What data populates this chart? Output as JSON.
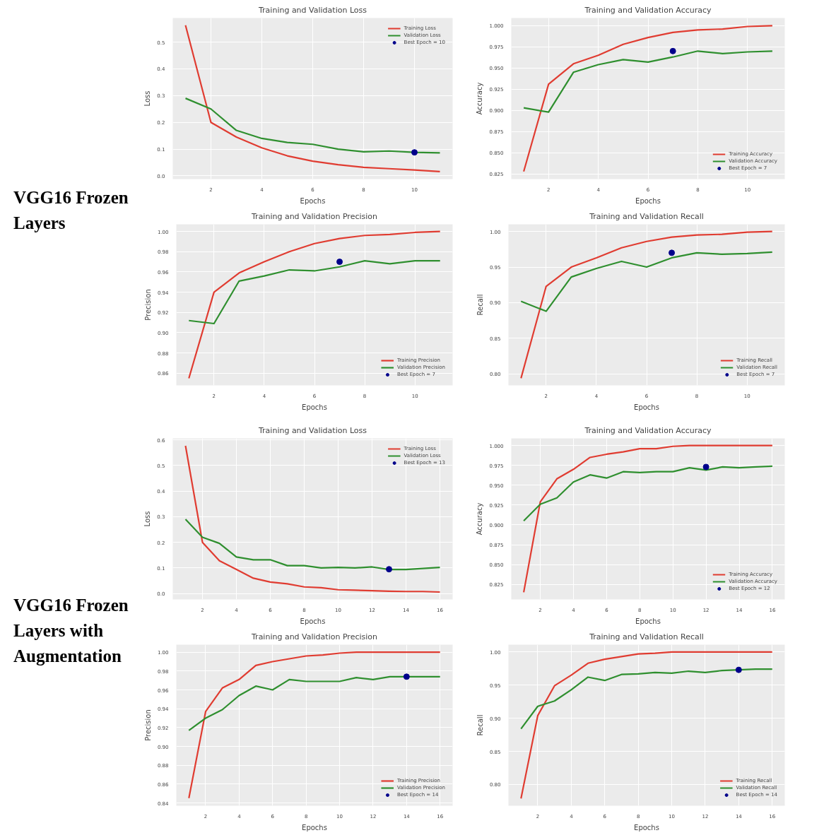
{
  "chart_data": [
    {
      "type": "other",
      "title": "VGG16 Frozen Layers"
    },
    {
      "type": "line",
      "title": "Training and Validation Loss",
      "xlabel": "Epochs",
      "ylabel": "Loss",
      "x": [
        1,
        2,
        3,
        4,
        5,
        6,
        7,
        8,
        9,
        10,
        11
      ],
      "xlim": [
        0.5,
        11.5
      ],
      "xticks": [
        2,
        4,
        6,
        8,
        10
      ],
      "ylim": [
        -0.012,
        0.59
      ],
      "yticks": [
        {
          "value": 0,
          "label": "0.0"
        },
        0.1,
        0.2,
        0.3,
        0.4,
        0.5
      ],
      "grid": true,
      "legend": "top right",
      "series": [
        {
          "name": "Training Loss",
          "color": "#e03c31",
          "values": [
            0.563,
            0.2,
            0.145,
            0.105,
            0.075,
            0.055,
            0.042,
            0.032,
            0.027,
            0.022,
            0.016
          ]
        },
        {
          "name": "Validation Loss",
          "color": "#2f8f2f",
          "values": [
            0.29,
            0.25,
            0.17,
            0.14,
            0.125,
            0.118,
            0.1,
            0.09,
            0.093,
            0.088,
            0.086
          ]
        },
        {
          "name": "Best Epoch = 10",
          "type": "scatter",
          "marker": "circle",
          "color": "#00008b",
          "x": [
            10
          ],
          "values": [
            0.088
          ]
        }
      ]
    },
    {
      "type": "line",
      "title": "Training and Validation Accuracy",
      "xlabel": "Epochs",
      "ylabel": "Accuracy",
      "x": [
        1,
        2,
        3,
        4,
        5,
        6,
        7,
        8,
        9,
        10,
        11
      ],
      "xlim": [
        0.5,
        11.5
      ],
      "xticks": [
        2,
        4,
        6,
        8,
        10
      ],
      "ylim": [
        0.819,
        1.009
      ],
      "yticks": [
        0.825,
        {
          "value": 0.85,
          "label": "0.850"
        },
        0.875,
        {
          "value": 0.9,
          "label": "0.900"
        },
        0.925,
        {
          "value": 0.95,
          "label": "0.950"
        },
        0.975,
        {
          "value": 1.0,
          "label": "1.000"
        }
      ],
      "grid": true,
      "legend": "bottom right",
      "series": [
        {
          "name": "Training Accuracy",
          "color": "#e03c31",
          "values": [
            0.828,
            0.931,
            0.955,
            0.965,
            0.978,
            0.986,
            0.992,
            0.995,
            0.996,
            0.999,
            1.0
          ]
        },
        {
          "name": "Validation Accuracy",
          "color": "#2f8f2f",
          "values": [
            0.903,
            0.898,
            0.945,
            0.954,
            0.96,
            0.957,
            0.963,
            0.97,
            0.967,
            0.969,
            0.97
          ]
        },
        {
          "name": "Best Epoch = 7",
          "type": "scatter",
          "marker": "circle",
          "color": "#00008b",
          "x": [
            7
          ],
          "values": [
            0.97
          ]
        }
      ]
    },
    {
      "type": "line",
      "title": "Training and Validation Precision",
      "xlabel": "Epochs",
      "ylabel": "Precision",
      "x": [
        1,
        2,
        3,
        4,
        5,
        6,
        7,
        8,
        9,
        10,
        11
      ],
      "xlim": [
        0.5,
        11.5
      ],
      "xticks": [
        2,
        4,
        6,
        8,
        10
      ],
      "ylim": [
        0.848,
        1.007
      ],
      "yticks": [
        0.86,
        0.88,
        {
          "value": 0.9,
          "label": "0.90"
        },
        0.92,
        0.94,
        0.96,
        0.98,
        {
          "value": 1.0,
          "label": "1.00"
        }
      ],
      "grid": true,
      "legend": "bottom right",
      "series": [
        {
          "name": "Training Precision",
          "color": "#e03c31",
          "values": [
            0.855,
            0.94,
            0.959,
            0.97,
            0.98,
            0.988,
            0.993,
            0.996,
            0.997,
            0.999,
            1.0
          ]
        },
        {
          "name": "Validation Precision",
          "color": "#2f8f2f",
          "values": [
            0.912,
            0.909,
            0.951,
            0.956,
            0.962,
            0.961,
            0.965,
            0.971,
            0.968,
            0.971,
            0.971
          ]
        },
        {
          "name": "Best Epoch = 7",
          "type": "scatter",
          "marker": "circle",
          "color": "#00008b",
          "x": [
            7
          ],
          "values": [
            0.97
          ]
        }
      ]
    },
    {
      "type": "line",
      "title": "Training and Validation Recall",
      "xlabel": "Epochs",
      "ylabel": "Recall",
      "x": [
        1,
        2,
        3,
        4,
        5,
        6,
        7,
        8,
        9,
        10,
        11
      ],
      "xlim": [
        0.5,
        11.5
      ],
      "xticks": [
        2,
        4,
        6,
        8,
        10
      ],
      "ylim": [
        0.784,
        1.01
      ],
      "yticks": [
        {
          "value": 0.8,
          "label": "0.80"
        },
        0.85,
        {
          "value": 0.9,
          "label": "0.90"
        },
        0.95,
        {
          "value": 1.0,
          "label": "1.00"
        }
      ],
      "grid": true,
      "legend": "bottom right",
      "series": [
        {
          "name": "Training Recall",
          "color": "#e03c31",
          "values": [
            0.794,
            0.923,
            0.95,
            0.963,
            0.977,
            0.986,
            0.992,
            0.995,
            0.996,
            0.999,
            1.0
          ]
        },
        {
          "name": "Validation Recall",
          "color": "#2f8f2f",
          "values": [
            0.902,
            0.888,
            0.936,
            0.948,
            0.958,
            0.95,
            0.963,
            0.97,
            0.968,
            0.969,
            0.971
          ]
        },
        {
          "name": "Best Epoch = 7",
          "type": "scatter",
          "marker": "circle",
          "color": "#00008b",
          "x": [
            7
          ],
          "values": [
            0.97
          ]
        }
      ]
    },
    {
      "type": "other",
      "title": "VGG16 Frozen Layers with Augmentation"
    },
    {
      "type": "line",
      "title": "Training and Validation Loss",
      "xlabel": "Epochs",
      "ylabel": "Loss",
      "x": [
        1,
        2,
        3,
        4,
        5,
        6,
        7,
        8,
        9,
        10,
        11,
        12,
        13,
        14,
        15,
        16
      ],
      "xlim": [
        0.25,
        16.75
      ],
      "xticks": [
        2,
        4,
        6,
        8,
        10,
        12,
        14,
        16
      ],
      "ylim": [
        -0.023,
        0.606
      ],
      "yticks": [
        {
          "value": 0,
          "label": "0.0"
        },
        0.1,
        0.2,
        0.3,
        0.4,
        0.5,
        0.6
      ],
      "grid": true,
      "legend": "top right",
      "series": [
        {
          "name": "Training Loss",
          "color": "#e03c31",
          "values": [
            0.577,
            0.2,
            0.128,
            0.094,
            0.06,
            0.045,
            0.038,
            0.026,
            0.023,
            0.015,
            0.013,
            0.011,
            0.009,
            0.008,
            0.008,
            0.006
          ]
        },
        {
          "name": "Validation Loss",
          "color": "#2f8f2f",
          "values": [
            0.29,
            0.22,
            0.196,
            0.143,
            0.132,
            0.132,
            0.109,
            0.109,
            0.1,
            0.102,
            0.1,
            0.104,
            0.094,
            0.094,
            0.098,
            0.102
          ]
        },
        {
          "name": "Best Epoch = 13",
          "type": "scatter",
          "marker": "circle",
          "color": "#00008b",
          "x": [
            13
          ],
          "values": [
            0.095
          ]
        }
      ]
    },
    {
      "type": "line",
      "title": "Training and Validation Accuracy",
      "xlabel": "Epochs",
      "ylabel": "Accuracy",
      "x": [
        1,
        2,
        3,
        4,
        5,
        6,
        7,
        8,
        9,
        10,
        11,
        12,
        13,
        14,
        15,
        16
      ],
      "xlim": [
        0.25,
        16.75
      ],
      "xticks": [
        2,
        4,
        6,
        8,
        10,
        12,
        14,
        16
      ],
      "ylim": [
        0.806,
        1.009
      ],
      "yticks": [
        0.825,
        {
          "value": 0.85,
          "label": "0.850"
        },
        0.875,
        {
          "value": 0.9,
          "label": "0.900"
        },
        0.925,
        {
          "value": 0.95,
          "label": "0.950"
        },
        0.975,
        {
          "value": 1.0,
          "label": "1.000"
        }
      ],
      "grid": true,
      "legend": "bottom right",
      "series": [
        {
          "name": "Training Accuracy",
          "color": "#e03c31",
          "values": [
            0.815,
            0.929,
            0.958,
            0.97,
            0.985,
            0.989,
            0.992,
            0.996,
            0.996,
            0.999,
            1.0,
            1.0,
            1.0,
            1.0,
            1.0,
            1.0
          ]
        },
        {
          "name": "Validation Accuracy",
          "color": "#2f8f2f",
          "values": [
            0.905,
            0.926,
            0.934,
            0.954,
            0.963,
            0.959,
            0.967,
            0.966,
            0.967,
            0.967,
            0.972,
            0.969,
            0.973,
            0.972,
            0.973,
            0.974
          ]
        },
        {
          "name": "Best Epoch = 12",
          "type": "scatter",
          "marker": "circle",
          "color": "#00008b",
          "x": [
            12
          ],
          "values": [
            0.973
          ]
        }
      ]
    },
    {
      "type": "line",
      "title": "Training and Validation Precision",
      "xlabel": "Epochs",
      "ylabel": "Precision",
      "x": [
        1,
        2,
        3,
        4,
        5,
        6,
        7,
        8,
        9,
        10,
        11,
        12,
        13,
        14,
        15,
        16
      ],
      "xlim": [
        0.25,
        16.75
      ],
      "xticks": [
        2,
        4,
        6,
        8,
        10,
        12,
        14,
        16
      ],
      "ylim": [
        0.837,
        1.008
      ],
      "yticks": [
        0.84,
        0.86,
        0.88,
        {
          "value": 0.9,
          "label": "0.90"
        },
        0.92,
        0.94,
        0.96,
        0.98,
        {
          "value": 1.0,
          "label": "1.00"
        }
      ],
      "grid": true,
      "legend": "bottom right",
      "series": [
        {
          "name": "Training Precision",
          "color": "#e03c31",
          "values": [
            0.845,
            0.937,
            0.962,
            0.971,
            0.986,
            0.99,
            0.993,
            0.996,
            0.997,
            0.999,
            1.0,
            1.0,
            1.0,
            1.0,
            1.0,
            1.0
          ]
        },
        {
          "name": "Validation Precision",
          "color": "#2f8f2f",
          "values": [
            0.917,
            0.93,
            0.939,
            0.954,
            0.964,
            0.96,
            0.971,
            0.969,
            0.969,
            0.969,
            0.973,
            0.971,
            0.974,
            0.974,
            0.974,
            0.974
          ]
        },
        {
          "name": "Best Epoch = 14",
          "type": "scatter",
          "marker": "circle",
          "color": "#00008b",
          "x": [
            14
          ],
          "values": [
            0.974
          ]
        }
      ]
    },
    {
      "type": "line",
      "title": "Training and Validation Recall",
      "xlabel": "Epochs",
      "ylabel": "Recall",
      "x": [
        1,
        2,
        3,
        4,
        5,
        6,
        7,
        8,
        9,
        10,
        11,
        12,
        13,
        14,
        15,
        16
      ],
      "xlim": [
        0.25,
        16.75
      ],
      "xticks": [
        2,
        4,
        6,
        8,
        10,
        12,
        14,
        16
      ],
      "ylim": [
        0.768,
        1.011
      ],
      "yticks": [
        {
          "value": 0.8,
          "label": "0.80"
        },
        0.85,
        {
          "value": 0.9,
          "label": "0.90"
        },
        0.95,
        {
          "value": 1.0,
          "label": "1.00"
        }
      ],
      "grid": true,
      "legend": "bottom right",
      "series": [
        {
          "name": "Training Recall",
          "color": "#e03c31",
          "values": [
            0.779,
            0.904,
            0.949,
            0.965,
            0.983,
            0.989,
            0.993,
            0.997,
            0.998,
            1.0,
            1.0,
            1.0,
            1.0,
            1.0,
            1.0,
            1.0
          ]
        },
        {
          "name": "Validation Recall",
          "color": "#2f8f2f",
          "values": [
            0.884,
            0.918,
            0.926,
            0.943,
            0.962,
            0.957,
            0.966,
            0.967,
            0.969,
            0.968,
            0.971,
            0.969,
            0.972,
            0.973,
            0.974,
            0.974
          ]
        },
        {
          "name": "Best Epoch = 14",
          "type": "scatter",
          "marker": "circle",
          "color": "#00008b",
          "x": [
            14
          ],
          "values": [
            0.973
          ]
        }
      ]
    }
  ]
}
